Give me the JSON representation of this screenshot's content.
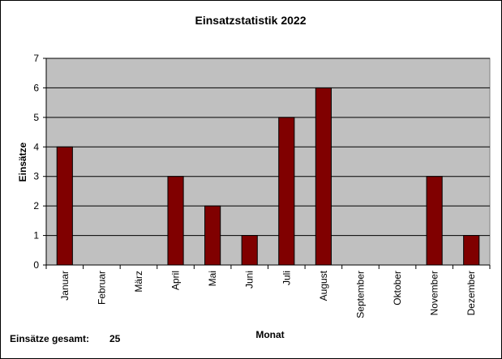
{
  "chart_data": {
    "type": "bar",
    "title": "Einsatzstatistik 2022",
    "x_label": "Monat",
    "y_label": "Einsätze",
    "categories": [
      "Januar",
      "Februar",
      "März",
      "April",
      "Mai",
      "Juni",
      "Juli",
      "August",
      "September",
      "Oktober",
      "November",
      "Dezember"
    ],
    "values": [
      4,
      0,
      0,
      3,
      2,
      1,
      5,
      6,
      0,
      0,
      3,
      1
    ],
    "color": "#800000",
    "ylim": [
      0,
      7
    ],
    "yticks": [
      0,
      1,
      2,
      3,
      4,
      5,
      6,
      7
    ],
    "grid": true,
    "total_label": "Einsätze gesamt:",
    "total": 25
  }
}
